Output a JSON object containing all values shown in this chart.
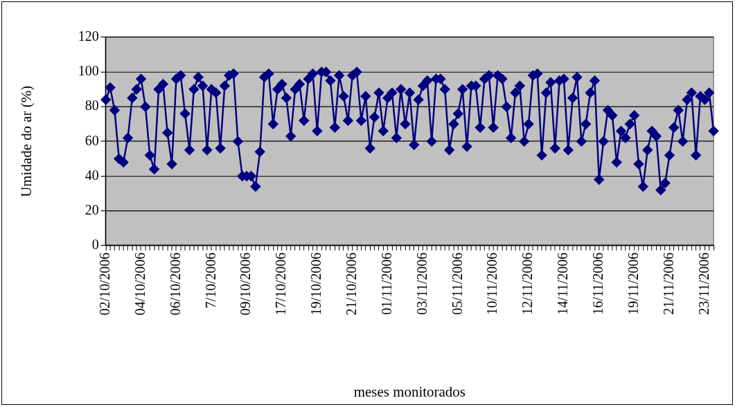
{
  "chart_data": {
    "type": "line",
    "xlabel": "meses monitorados",
    "ylabel": "Umidade do ar (%)",
    "categories": [
      "02/10/2006",
      null,
      null,
      null,
      null,
      null,
      null,
      null,
      "04/10/2006",
      null,
      null,
      null,
      null,
      null,
      null,
      null,
      "06/10/2006",
      null,
      null,
      null,
      null,
      null,
      null,
      null,
      "7/10/2006",
      null,
      null,
      null,
      null,
      null,
      null,
      null,
      "09/10/2006",
      null,
      null,
      null,
      null,
      null,
      null,
      null,
      "17/10/2006",
      null,
      null,
      null,
      null,
      null,
      null,
      null,
      "19/10/2006",
      null,
      null,
      null,
      null,
      null,
      null,
      null,
      "21/10/2006",
      null,
      null,
      null,
      null,
      null,
      null,
      null,
      "01/11/2006",
      null,
      null,
      null,
      null,
      null,
      null,
      null,
      "03/11/2006",
      null,
      null,
      null,
      null,
      null,
      null,
      null,
      "05/11/2006",
      null,
      null,
      null,
      null,
      null,
      null,
      null,
      "10/11/2006",
      null,
      null,
      null,
      null,
      null,
      null,
      null,
      "12/11/2006",
      null,
      null,
      null,
      null,
      null,
      null,
      null,
      "14/11/2006",
      null,
      null,
      null,
      null,
      null,
      null,
      null,
      "16/11/2006",
      null,
      null,
      null,
      null,
      null,
      null,
      null,
      "19/11/2006",
      null,
      null,
      null,
      null,
      null,
      null,
      null,
      "21/11/2006",
      null,
      null,
      null,
      null,
      null,
      null,
      null,
      "23/11/2006",
      null,
      null
    ],
    "series": [
      {
        "color": "#000080",
        "values": [
          84,
          91,
          78,
          50,
          48,
          62,
          85,
          90,
          96,
          80,
          52,
          44,
          90,
          93,
          65,
          47,
          96,
          98,
          76,
          55,
          90,
          97,
          92,
          55,
          90,
          88,
          56,
          92,
          98,
          99,
          60,
          40,
          40,
          40,
          34,
          54,
          97,
          99,
          70,
          90,
          93,
          85,
          63,
          90,
          93,
          72,
          96,
          99,
          66,
          100,
          100,
          95,
          68,
          98,
          86,
          72,
          98,
          100,
          72,
          86,
          56,
          74,
          88,
          66,
          85,
          88,
          62,
          90,
          70,
          88,
          58,
          84,
          92,
          95,
          60,
          96,
          96,
          90,
          55,
          70,
          76,
          90,
          57,
          92,
          92,
          68,
          96,
          98,
          68,
          98,
          96,
          80,
          62,
          88,
          92,
          60,
          70,
          98,
          99,
          52,
          88,
          94,
          56,
          95,
          96,
          55,
          85,
          97,
          60,
          70,
          88,
          95,
          38,
          60,
          78,
          75,
          48,
          66,
          62,
          70,
          75,
          47,
          34,
          55,
          66,
          63,
          32,
          36,
          52,
          68,
          78,
          60,
          84,
          88,
          52,
          86,
          84,
          88,
          66
        ]
      }
    ],
    "ylim": [
      0,
      120
    ],
    "yticks": [
      0,
      20,
      40,
      60,
      80,
      100,
      120
    ],
    "grid": "y",
    "marker": "diamond",
    "line_style": "solid"
  }
}
